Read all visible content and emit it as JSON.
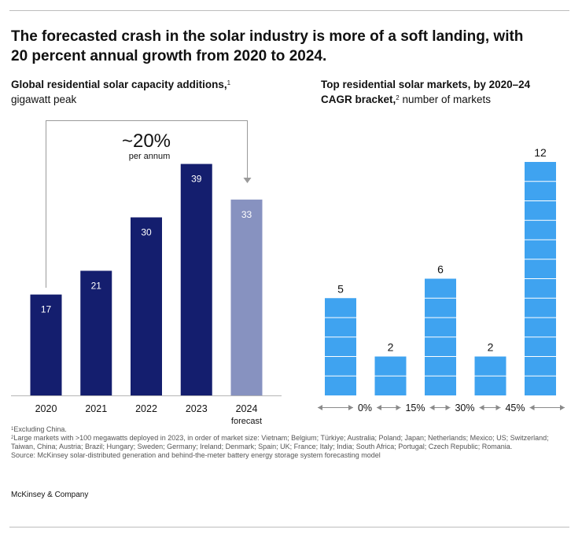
{
  "headline_line1": "The forecasted crash in the solar industry is more of a soft landing, with",
  "headline_line2": "20 percent annual growth from 2020 to 2024.",
  "left_panel": {
    "title": "Global residential solar capacity additions,",
    "title_sup": "1",
    "subtitle": "gigawatt peak",
    "growth_label": "~20%",
    "growth_sub": "per annum"
  },
  "right_panel": {
    "title_line1": "Top residential solar markets, by 2020–24",
    "title_line2_bold": "CAGR bracket,",
    "title_sup": "2",
    "title_line2_rest": "number of markets"
  },
  "chart_data": [
    {
      "type": "bar",
      "title": "Global residential solar capacity additions",
      "ylabel": "gigawatt peak",
      "categories": [
        "2020",
        "2021",
        "2022",
        "2023",
        "2024"
      ],
      "category_sublabels": [
        "",
        "",
        "",
        "",
        "forecast"
      ],
      "values": [
        17,
        21,
        30,
        39,
        33
      ],
      "value_labels": [
        "17",
        "21",
        "30",
        "39",
        "33"
      ],
      "forecast_index": 4,
      "ylim": [
        0,
        45
      ],
      "colors": {
        "actual": "#141e6e",
        "forecast": "#8792c0"
      },
      "annotation": "~20% per annum"
    },
    {
      "type": "bar",
      "title": "Top residential solar markets, by 2020–24 CAGR bracket",
      "ylabel": "number of markets",
      "categories": [
        "<0%",
        "0–15%",
        "15–30%",
        "30–45%",
        ">45%"
      ],
      "values": [
        5,
        2,
        6,
        2,
        12
      ],
      "value_labels": [
        "5",
        "2",
        "6",
        "2",
        "12"
      ],
      "axis_markers": [
        "0%",
        "15%",
        "30%",
        "45%"
      ],
      "ylim": [
        0,
        13
      ],
      "colors": {
        "bar": "#3fa3f0",
        "divider": "#ffffff"
      }
    }
  ],
  "notes": {
    "n1_sup": "1",
    "n1": "Excluding China.",
    "n2_sup": "2",
    "n2": "Large markets with >100 megawatts deployed in 2023, in order of market size: Vietnam; Belgium; Türkiye; Australia; Poland; Japan; Netherlands; Mexico; US; Switzerland; Taiwan, China; Austria; Brazil; Hungary; Sweden; Germany; Ireland; Denmark; Spain; UK; France; Italy; India; South Africa; Portugal; Czech Republic; Romania.",
    "source": "Source: McKinsey solar-distributed generation and behind-the-meter battery energy storage system forecasting model"
  },
  "brand": "McKinsey & Company"
}
